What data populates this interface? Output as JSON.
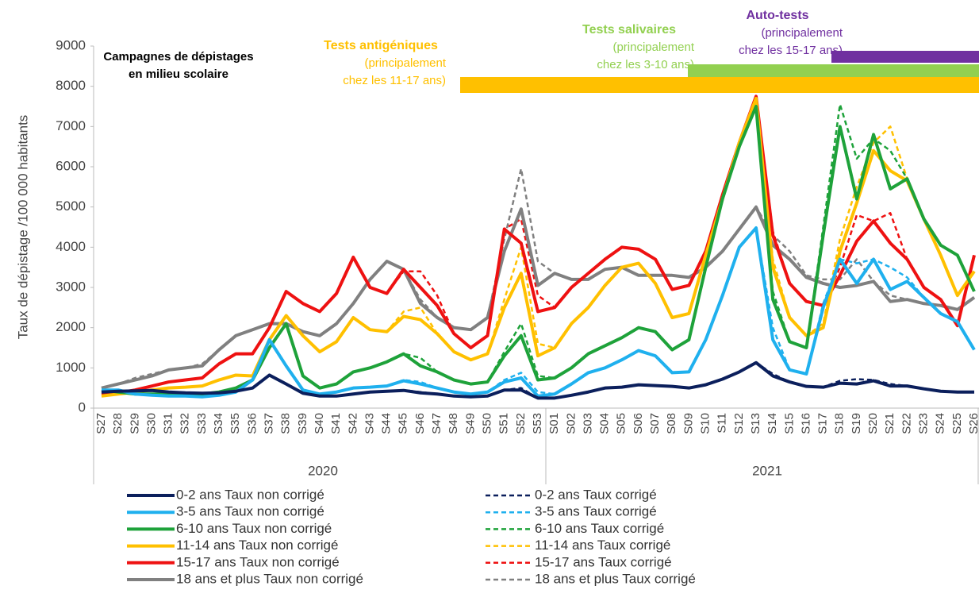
{
  "chart_data": {
    "type": "line",
    "y_label": "Taux de dépistage /100 000 habitants",
    "ylim": [
      0,
      9000
    ],
    "yticks": [
      0,
      1000,
      2000,
      3000,
      4000,
      5000,
      6000,
      7000,
      8000,
      9000
    ],
    "categories": [
      "S27",
      "S28",
      "S29",
      "S30",
      "S31",
      "S32",
      "S33",
      "S34",
      "S35",
      "S36",
      "S37",
      "S38",
      "S39",
      "S40",
      "S41",
      "S42",
      "S43",
      "S44",
      "S45",
      "S46",
      "S47",
      "S48",
      "S49",
      "S50",
      "S51",
      "S52",
      "S53",
      "S01",
      "S02",
      "S03",
      "S04",
      "S05",
      "S06",
      "S07",
      "S08",
      "S09",
      "S10",
      "S11",
      "S12",
      "S13",
      "S14",
      "S15",
      "S16",
      "S17",
      "S18",
      "S19",
      "S20",
      "S21",
      "S22",
      "S23",
      "S24",
      "S25",
      "S26"
    ],
    "year_labels": [
      "2020",
      "2021"
    ],
    "annotations": [
      {
        "lines": [
          "Campagnes de dépistages",
          "en milieu scolaire"
        ],
        "color": "#000000"
      },
      {
        "lines": [
          "Tests antigéniques",
          "(principalement",
          "chez les 11-17 ans)"
        ],
        "color": "#ffc000"
      },
      {
        "lines": [
          "Tests salivaires",
          "(principalement",
          "chez les 3-10 ans)"
        ],
        "color": "#92d050"
      },
      {
        "lines": [
          "Auto-tests",
          "(principalement",
          "chez les 15-17 ans)"
        ],
        "color": "#7030a0"
      }
    ],
    "series": [
      {
        "name": "0-2 ans  Taux non corrigé",
        "color": "#0b1f5c",
        "style": "solid",
        "values": [
          400,
          420,
          430,
          440,
          400,
          380,
          370,
          380,
          420,
          500,
          820,
          600,
          370,
          300,
          300,
          350,
          400,
          420,
          440,
          380,
          350,
          300,
          280,
          300,
          450,
          450,
          250,
          250,
          320,
          400,
          500,
          520,
          580,
          560,
          540,
          500,
          580,
          720,
          900,
          1130,
          800,
          650,
          540,
          520,
          620,
          600,
          680,
          550,
          550,
          480,
          420,
          400,
          400
        ]
      },
      {
        "name": "3-5 ans  Taux non corrigé",
        "color": "#1fb0ee",
        "style": "solid",
        "values": [
          450,
          450,
          350,
          320,
          300,
          300,
          280,
          320,
          400,
          700,
          1700,
          1050,
          450,
          350,
          400,
          500,
          520,
          550,
          680,
          600,
          500,
          400,
          350,
          400,
          650,
          750,
          300,
          350,
          600,
          880,
          1000,
          1200,
          1430,
          1300,
          880,
          900,
          1700,
          2800,
          4000,
          4480,
          1700,
          950,
          850,
          2500,
          3700,
          3100,
          3700,
          2950,
          3150,
          2750,
          2350,
          2150,
          1450
        ]
      },
      {
        "name": "6-10 ans Taux non corrigé",
        "color": "#1ea23a",
        "style": "solid",
        "values": [
          450,
          400,
          350,
          350,
          350,
          350,
          350,
          400,
          500,
          700,
          1500,
          2100,
          800,
          500,
          600,
          900,
          1000,
          1150,
          1350,
          1050,
          900,
          700,
          600,
          650,
          1300,
          1800,
          700,
          750,
          1000,
          1350,
          1550,
          1750,
          2000,
          1900,
          1450,
          1700,
          3500,
          5200,
          6500,
          7500,
          2700,
          1650,
          1500,
          4300,
          7000,
          5200,
          6800,
          5450,
          5700,
          4700,
          4050,
          3800,
          2900
        ]
      },
      {
        "name": "11-14 ans Taux non corrigé",
        "color": "#ffc000",
        "style": "solid",
        "values": [
          300,
          350,
          400,
          450,
          500,
          520,
          550,
          700,
          820,
          800,
          1700,
          2300,
          1800,
          1400,
          1650,
          2250,
          1950,
          1900,
          2280,
          2200,
          1850,
          1400,
          1200,
          1350,
          2500,
          3350,
          1300,
          1500,
          2100,
          2500,
          3050,
          3500,
          3600,
          3100,
          2250,
          2350,
          3800,
          5200,
          6600,
          7700,
          3500,
          2250,
          1800,
          2000,
          3900,
          5100,
          6400,
          5900,
          5650,
          4700,
          3800,
          2800,
          3400
        ]
      },
      {
        "name": "15-17 ans Taux non corrigé",
        "color": "#ee1111",
        "style": "solid",
        "values": [
          350,
          380,
          450,
          550,
          650,
          700,
          750,
          1100,
          1350,
          1350,
          2000,
          2900,
          2600,
          2400,
          2850,
          3750,
          3000,
          2850,
          3450,
          3000,
          2550,
          1850,
          1500,
          1800,
          4450,
          4100,
          2400,
          2500,
          3000,
          3350,
          3700,
          4000,
          3950,
          3700,
          2950,
          3050,
          3900,
          5300,
          6600,
          7750,
          4300,
          3100,
          2650,
          2550,
          3300,
          4150,
          4650,
          4100,
          3700,
          3000,
          2700,
          2050,
          3800
        ]
      },
      {
        "name": "18 ans et plus Taux non corrigé",
        "color": "#808080",
        "style": "solid",
        "values": [
          500,
          600,
          700,
          800,
          950,
          1000,
          1050,
          1450,
          1800,
          1950,
          2100,
          2100,
          1900,
          1800,
          2100,
          2600,
          3200,
          3650,
          3450,
          2600,
          2250,
          2000,
          1950,
          2250,
          3900,
          4950,
          3050,
          3350,
          3200,
          3200,
          3450,
          3500,
          3300,
          3300,
          3300,
          3250,
          3500,
          3900,
          4450,
          5000,
          4050,
          3700,
          3250,
          3100,
          3000,
          3050,
          3150,
          2650,
          2700,
          2600,
          2550,
          2450,
          2750
        ]
      },
      {
        "name": "0-2 ans  Taux corrigé",
        "color": "#0b1f5c",
        "style": "dashed",
        "values": [
          400,
          420,
          430,
          440,
          400,
          380,
          370,
          380,
          420,
          500,
          820,
          600,
          370,
          300,
          300,
          350,
          400,
          420,
          450,
          400,
          350,
          300,
          280,
          300,
          450,
          500,
          250,
          250,
          320,
          400,
          500,
          520,
          580,
          560,
          540,
          500,
          580,
          720,
          900,
          1130,
          850,
          650,
          540,
          520,
          680,
          720,
          700,
          600,
          550,
          480,
          420,
          400,
          400
        ]
      },
      {
        "name": "3-5 ans  Taux corrigé",
        "color": "#1fb0ee",
        "style": "dashed",
        "values": [
          450,
          450,
          350,
          320,
          300,
          300,
          280,
          320,
          400,
          700,
          1700,
          1050,
          450,
          350,
          400,
          500,
          520,
          550,
          700,
          650,
          500,
          400,
          350,
          400,
          700,
          880,
          400,
          350,
          600,
          880,
          1000,
          1200,
          1430,
          1300,
          880,
          900,
          1700,
          2800,
          4000,
          4480,
          2000,
          950,
          850,
          2600,
          3700,
          3600,
          3700,
          3500,
          3250,
          2750,
          2350,
          2150,
          1450
        ]
      },
      {
        "name": "6-10 ans Taux corrigé",
        "color": "#1ea23a",
        "style": "dashed",
        "values": [
          450,
          400,
          350,
          350,
          350,
          350,
          350,
          400,
          500,
          700,
          1500,
          2100,
          800,
          500,
          600,
          900,
          1000,
          1150,
          1350,
          1250,
          900,
          700,
          600,
          650,
          1400,
          2100,
          800,
          750,
          1000,
          1350,
          1550,
          1750,
          2000,
          1900,
          1450,
          1700,
          3500,
          5200,
          6500,
          7500,
          2900,
          1650,
          1500,
          4500,
          7550,
          6200,
          6700,
          6400,
          5700,
          4700,
          4050,
          3800,
          2900
        ]
      },
      {
        "name": "11-14 ans Taux corrigé",
        "color": "#ffc000",
        "style": "dashed",
        "values": [
          300,
          350,
          400,
          450,
          500,
          520,
          550,
          700,
          820,
          800,
          1700,
          2300,
          1800,
          1400,
          1650,
          2250,
          1950,
          1900,
          2400,
          2500,
          1850,
          1400,
          1200,
          1350,
          2700,
          4000,
          1600,
          1500,
          2100,
          2500,
          3050,
          3500,
          3600,
          3100,
          2250,
          2350,
          3800,
          5200,
          6600,
          7700,
          3700,
          2250,
          1800,
          2100,
          4200,
          5500,
          6600,
          7000,
          5700,
          4700,
          3800,
          2800,
          3400
        ]
      },
      {
        "name": "15-17 ans Taux corrigé",
        "color": "#ee1111",
        "style": "dashed",
        "values": [
          350,
          380,
          450,
          550,
          650,
          700,
          750,
          1100,
          1350,
          1350,
          2000,
          2900,
          2600,
          2400,
          2850,
          3750,
          3000,
          2850,
          3400,
          3400,
          2800,
          1850,
          1500,
          1800,
          4450,
          4700,
          2800,
          2500,
          3000,
          3350,
          3700,
          4000,
          3950,
          3700,
          2950,
          3050,
          3900,
          5300,
          6600,
          7750,
          4400,
          3100,
          2650,
          2550,
          3500,
          4800,
          4650,
          4850,
          3700,
          3000,
          2700,
          2050,
          3800
        ]
      },
      {
        "name": "18 ans et plus Taux corrigé",
        "color": "#808080",
        "style": "dashed",
        "values": [
          500,
          600,
          750,
          850,
          950,
          1000,
          1100,
          1450,
          1800,
          1950,
          2100,
          2100,
          1900,
          1800,
          2100,
          2600,
          3200,
          3650,
          3450,
          2700,
          2250,
          2000,
          1950,
          2250,
          4200,
          5950,
          3650,
          3350,
          3200,
          3200,
          3450,
          3500,
          3300,
          3300,
          3300,
          3250,
          3500,
          3900,
          4450,
          5000,
          4300,
          3900,
          3300,
          3200,
          3200,
          3700,
          3150,
          2800,
          2700,
          2600,
          2550,
          2450,
          2750
        ]
      }
    ]
  }
}
